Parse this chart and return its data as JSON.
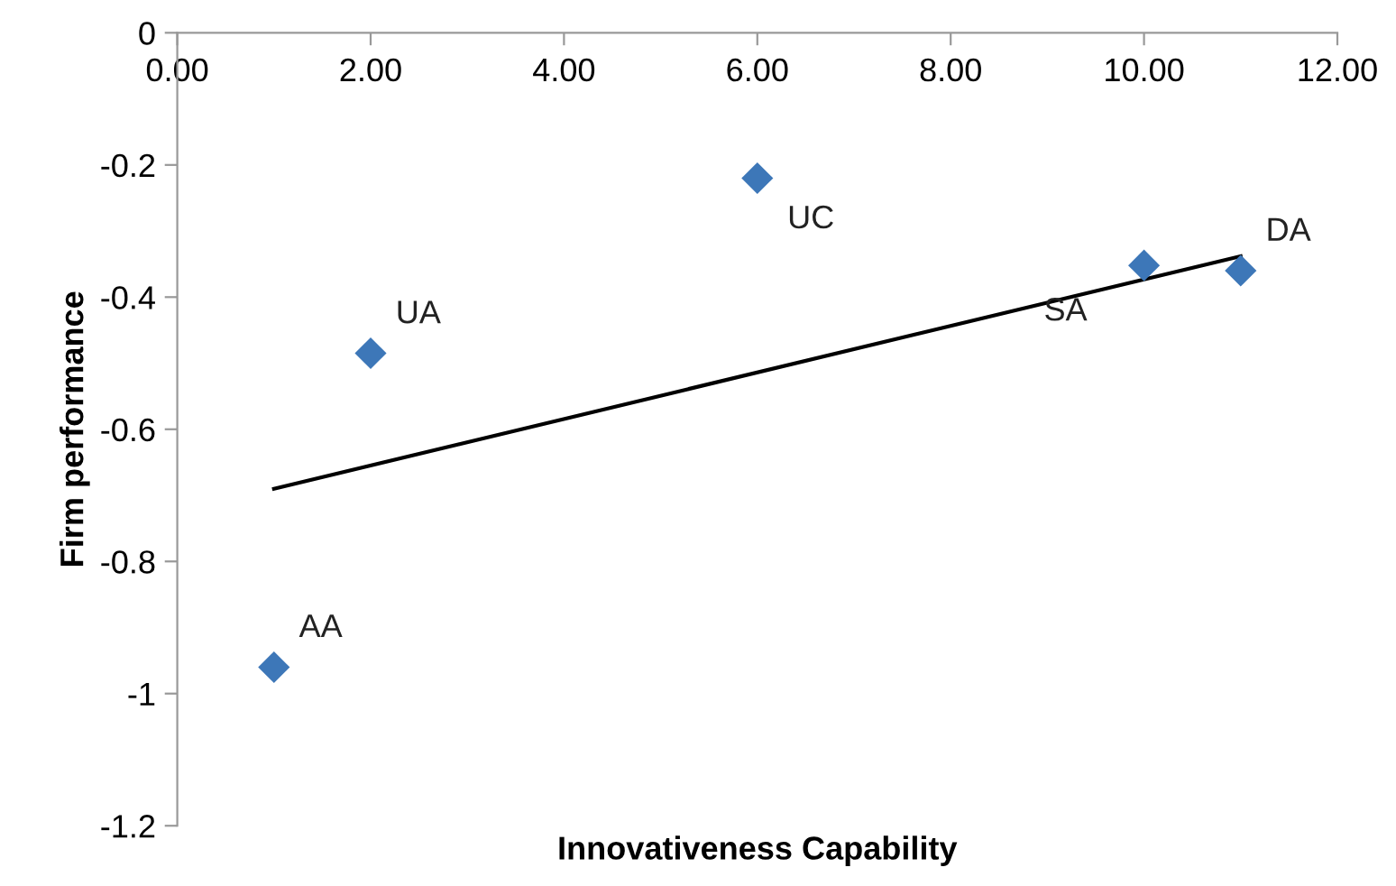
{
  "chart_data": {
    "type": "scatter",
    "xlabel": "Innovativeness Capability",
    "ylabel": "Firm performance",
    "series": [
      {
        "color": "#3d77b8",
        "marker": "diamond",
        "x": [
          1,
          2,
          6,
          10,
          11
        ],
        "values": [
          -0.96,
          -0.485,
          -0.22,
          -0.352,
          -0.36
        ]
      },
      {
        "type": "line",
        "marker": "none",
        "color": "#000000",
        "x": [
          1,
          11
        ],
        "values": [
          -0.69,
          -0.338
        ]
      }
    ],
    "annotations": [
      {
        "text": "AA",
        "x": 1,
        "y": -0.96
      },
      {
        "text": "UA",
        "x": 2,
        "y": -0.485
      },
      {
        "text": "UC",
        "x": 6,
        "y": -0.22
      },
      {
        "text": "SA",
        "x": 10,
        "y": -0.352
      },
      {
        "text": "DA",
        "x": 11,
        "y": -0.36
      }
    ],
    "xlim": [
      0,
      12
    ],
    "ylim": [
      -1.2,
      0
    ],
    "xticks": [
      {
        "value": 0,
        "label": "0.00"
      },
      {
        "value": 2,
        "label": "2.00"
      },
      {
        "value": 4,
        "label": "4.00"
      },
      {
        "value": 6,
        "label": "6.00"
      },
      {
        "value": 8,
        "label": "8.00"
      },
      {
        "value": 10,
        "label": "10.00"
      },
      {
        "value": 12,
        "label": "12.00"
      }
    ],
    "yticks": [
      -1.2,
      -1,
      -0.8,
      -0.6,
      -0.4,
      -0.2,
      0
    ],
    "grid": false,
    "legend": false
  }
}
